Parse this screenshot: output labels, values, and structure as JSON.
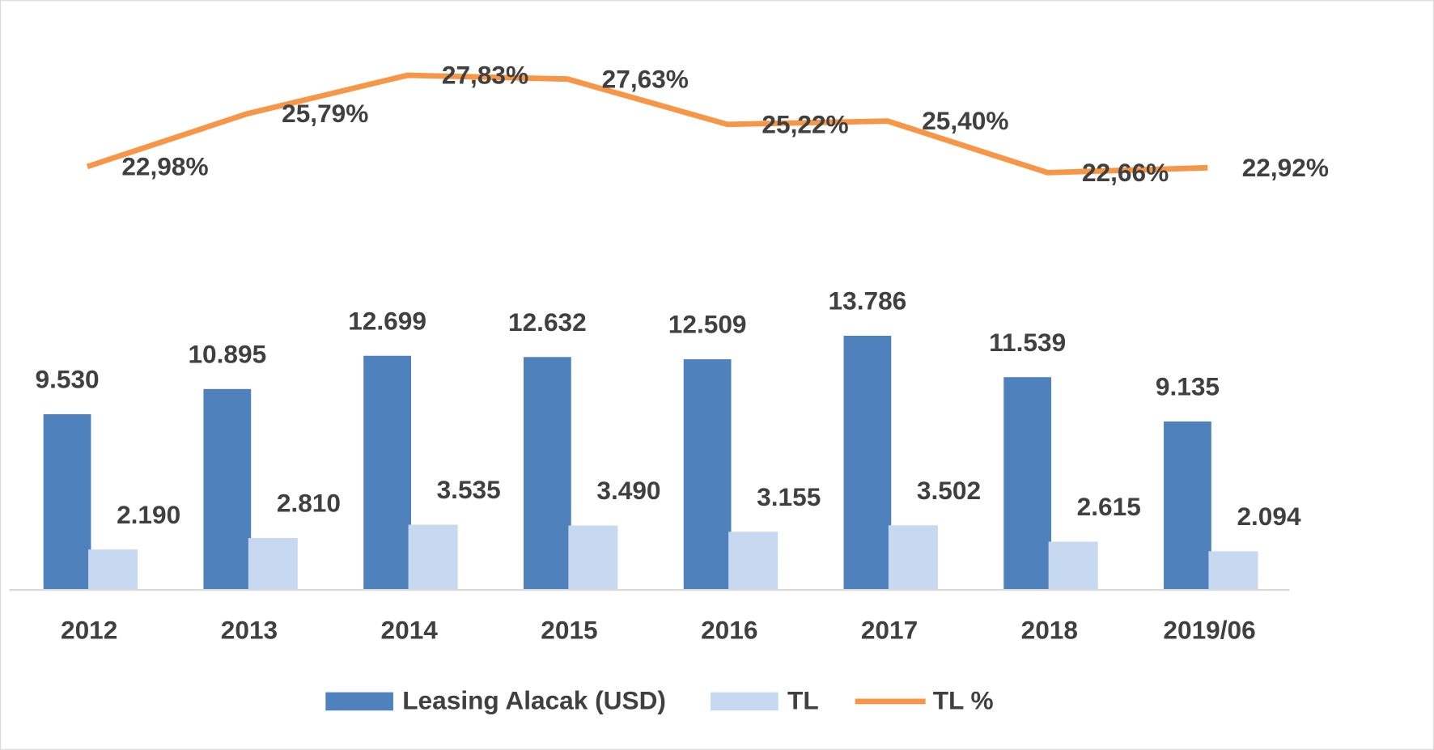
{
  "chart_data": {
    "type": "bar",
    "categories": [
      "2012",
      "2013",
      "2014",
      "2015",
      "2016",
      "2017",
      "2018",
      "2019/06"
    ],
    "ylim": [
      0,
      31000
    ],
    "y2lim": [
      0.5,
      30.85
    ],
    "series": [
      {
        "name": "Leasing Alacak (USD)",
        "color": "#4f81bd",
        "values": [
          9530,
          10895,
          12699,
          12632,
          12509,
          13786,
          11539,
          9135
        ],
        "value_labels": [
          "9.530",
          "10.895",
          "12.699",
          "12.632",
          "12.509",
          "13.786",
          "11.539",
          "9.135"
        ]
      },
      {
        "name": "TL",
        "color": "#c6d9f1",
        "values": [
          2190,
          2810,
          3535,
          3490,
          3155,
          3502,
          2615,
          2094
        ],
        "value_labels": [
          "2.190",
          "2.810",
          "3.535",
          "3.490",
          "3.155",
          "3.502",
          "2.615",
          "2.094"
        ]
      },
      {
        "name": "TL %",
        "color": "#f79646",
        "type": "line",
        "axis": "y2",
        "values": [
          22.98,
          25.79,
          27.83,
          27.63,
          25.22,
          25.4,
          22.66,
          22.92
        ],
        "value_labels": [
          "22,98%",
          "25,79%",
          "27,83%",
          "27,63%",
          "25,22%",
          "25,40%",
          "22,66%",
          "22,92%"
        ]
      }
    ]
  }
}
